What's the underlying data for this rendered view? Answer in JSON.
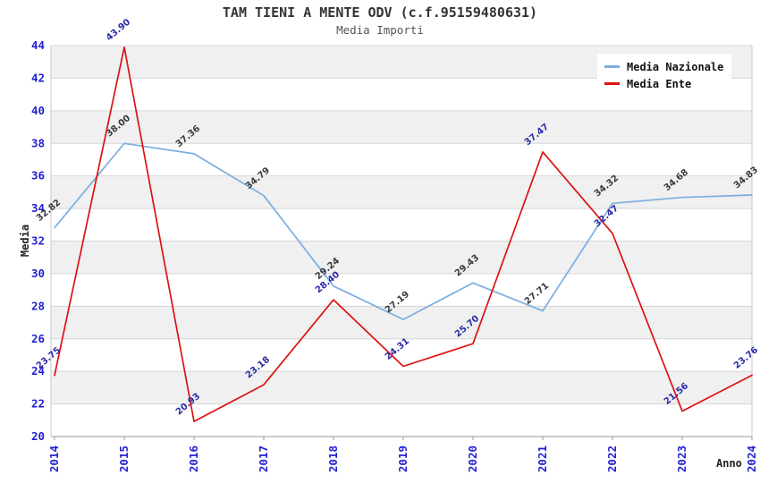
{
  "chart_data": {
    "type": "line",
    "title": "TAM TIENI A MENTE ODV (c.f.95159480631)",
    "subtitle": "Media Importi",
    "xlabel": "Anno",
    "ylabel": "Media",
    "x": [
      "2014",
      "2015",
      "2016",
      "2017",
      "2018",
      "2019",
      "2020",
      "2021",
      "2022",
      "2023",
      "2024"
    ],
    "series": [
      {
        "name": "Media Nazionale",
        "color": "#7aaede",
        "label_color": "#3a3a3a",
        "values": [
          32.82,
          38.0,
          37.36,
          34.79,
          29.24,
          27.19,
          29.43,
          27.71,
          34.32,
          34.68,
          34.83
        ]
      },
      {
        "name": "Media Ente",
        "color": "#dd1111",
        "label_color": "#2b2ba6",
        "values": [
          23.75,
          43.9,
          20.93,
          23.18,
          28.4,
          24.31,
          25.7,
          37.47,
          32.47,
          21.56,
          23.76
        ]
      }
    ],
    "ylim": [
      20,
      44
    ],
    "ytick_step": 2,
    "grid": true,
    "band_fill": "#f0f0f0",
    "gridline_color": "#d6d6d6",
    "axis_color": "#9a9a9a",
    "border_color": "#c8c8c8",
    "tick_label_color": "#1f1fd3",
    "legend_position": "top-right"
  }
}
